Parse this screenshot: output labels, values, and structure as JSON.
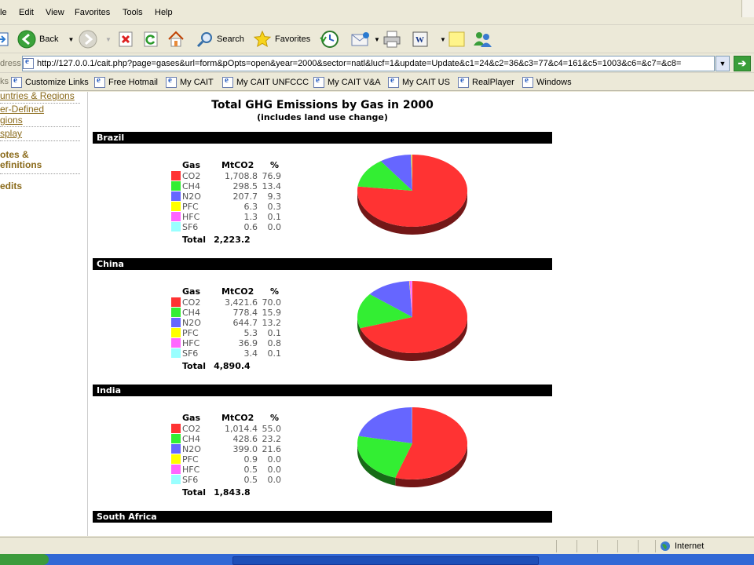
{
  "menu": [
    "le",
    "Edit",
    "View",
    "Favorites",
    "Tools",
    "Help"
  ],
  "toolbar": {
    "back_label": "Back",
    "search_label": "Search",
    "favorites_label": "Favorites"
  },
  "address": {
    "label": "dress",
    "url": "http://127.0.0.1/cait.php?page=gases&url=form&pOpts=open&year=2000&sector=natl&lucf=1&update=Update&c1=24&c2=36&c3=77&c4=161&c5=1003&c6=&c7=&c8="
  },
  "links": {
    "label": "ks",
    "items": [
      "Customize Links",
      "Free Hotmail",
      "My CAIT",
      "My CAIT UNFCCC",
      "My CAIT V&A",
      "My CAIT US",
      "RealPlayer",
      "Windows"
    ]
  },
  "sidebar": {
    "countries_regions": "untries & Regions",
    "user_defined_1": "er-Defined",
    "user_defined_2": "gions",
    "display": "splay",
    "notes_1": "otes &",
    "notes_2": "efinitions",
    "credits": "edits"
  },
  "report": {
    "title": "Total GHG Emissions by Gas in 2000",
    "subtitle": "(includes land use change)",
    "col_gas": "Gas",
    "col_mt": "MtCO2",
    "col_pct": "%",
    "total_label": "Total"
  },
  "colors": {
    "CO2": "#ff3333",
    "CH4": "#33ee33",
    "N2O": "#6666ff",
    "PFC": "#ffff00",
    "HFC": "#ff66ff",
    "SF6": "#99ffff"
  },
  "countries": [
    {
      "name": "Brazil",
      "total": "2,223.2",
      "gases": [
        {
          "gas": "CO2",
          "mt": "1,708.8",
          "pct": "76.9"
        },
        {
          "gas": "CH4",
          "mt": "298.5",
          "pct": "13.4"
        },
        {
          "gas": "N2O",
          "mt": "207.7",
          "pct": "9.3"
        },
        {
          "gas": "PFC",
          "mt": "6.3",
          "pct": "0.3"
        },
        {
          "gas": "HFC",
          "mt": "1.3",
          "pct": "0.1"
        },
        {
          "gas": "SF6",
          "mt": "0.6",
          "pct": "0.0"
        }
      ]
    },
    {
      "name": "China",
      "total": "4,890.4",
      "gases": [
        {
          "gas": "CO2",
          "mt": "3,421.6",
          "pct": "70.0"
        },
        {
          "gas": "CH4",
          "mt": "778.4",
          "pct": "15.9"
        },
        {
          "gas": "N2O",
          "mt": "644.7",
          "pct": "13.2"
        },
        {
          "gas": "PFC",
          "mt": "5.3",
          "pct": "0.1"
        },
        {
          "gas": "HFC",
          "mt": "36.9",
          "pct": "0.8"
        },
        {
          "gas": "SF6",
          "mt": "3.4",
          "pct": "0.1"
        }
      ]
    },
    {
      "name": "India",
      "total": "1,843.8",
      "gases": [
        {
          "gas": "CO2",
          "mt": "1,014.4",
          "pct": "55.0"
        },
        {
          "gas": "CH4",
          "mt": "428.6",
          "pct": "23.2"
        },
        {
          "gas": "N2O",
          "mt": "399.0",
          "pct": "21.6"
        },
        {
          "gas": "PFC",
          "mt": "0.9",
          "pct": "0.0"
        },
        {
          "gas": "HFC",
          "mt": "0.5",
          "pct": "0.0"
        },
        {
          "gas": "SF6",
          "mt": "0.5",
          "pct": "0.0"
        }
      ]
    },
    {
      "name": "South Africa",
      "total": "",
      "gases": []
    }
  ],
  "status": {
    "zone": "Internet"
  }
}
